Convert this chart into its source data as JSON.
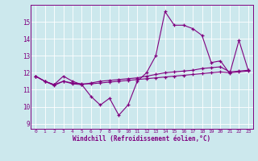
{
  "xlabel": "Windchill (Refroidissement éolien,°C)",
  "background_color": "#cce8ed",
  "line_color": "#800080",
  "grid_color": "#ffffff",
  "x_ticks": [
    0,
    1,
    2,
    3,
    4,
    5,
    6,
    7,
    8,
    9,
    10,
    11,
    12,
    13,
    14,
    15,
    16,
    17,
    18,
    19,
    20,
    21,
    22,
    23
  ],
  "y_ticks": [
    9,
    10,
    11,
    12,
    13,
    14,
    15
  ],
  "ylim": [
    8.7,
    16.0
  ],
  "xlim": [
    -0.5,
    23.5
  ],
  "series1_y": [
    11.8,
    11.5,
    11.3,
    11.8,
    11.5,
    11.3,
    10.6,
    10.1,
    10.5,
    9.5,
    10.1,
    11.5,
    12.0,
    13.0,
    15.6,
    14.8,
    14.8,
    14.6,
    14.2,
    12.6,
    12.7,
    11.95,
    13.9,
    12.15
  ],
  "series2_y": [
    11.8,
    11.5,
    11.25,
    11.5,
    11.35,
    11.3,
    11.4,
    11.5,
    11.55,
    11.6,
    11.65,
    11.7,
    11.8,
    11.9,
    12.0,
    12.05,
    12.1,
    12.15,
    12.25,
    12.3,
    12.35,
    12.05,
    12.1,
    12.15
  ],
  "series3_y": [
    11.8,
    11.5,
    11.3,
    11.5,
    11.4,
    11.35,
    11.35,
    11.4,
    11.45,
    11.5,
    11.55,
    11.6,
    11.65,
    11.7,
    11.75,
    11.8,
    11.85,
    11.9,
    11.95,
    12.0,
    12.05,
    12.0,
    12.05,
    12.1
  ]
}
